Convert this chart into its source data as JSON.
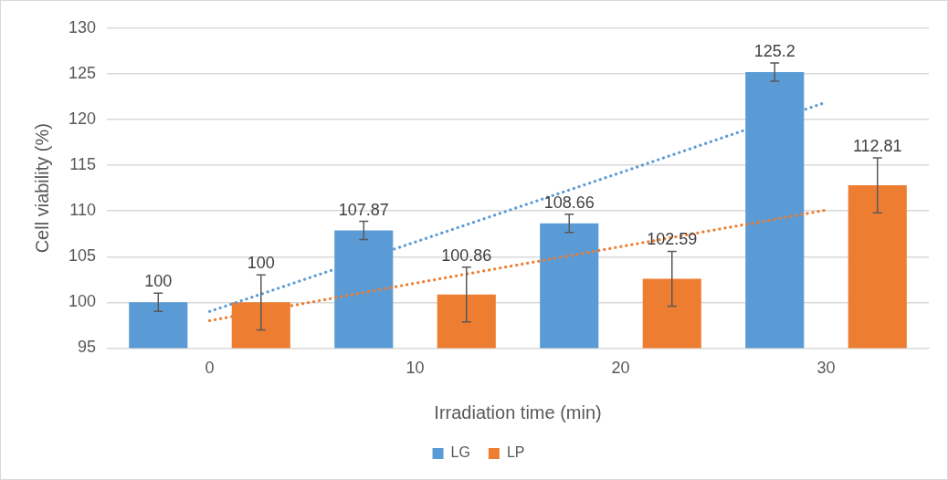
{
  "chart_data": {
    "type": "bar",
    "xlabel": "Irradiation time (min)",
    "ylabel": "Cell viability (%)",
    "categories": [
      "0",
      "10",
      "20",
      "30"
    ],
    "ylim": [
      95,
      130
    ],
    "yticks": [
      95,
      100,
      105,
      110,
      115,
      120,
      125,
      130
    ],
    "grid": "y",
    "legend": "bottom",
    "series": [
      {
        "name": "LG",
        "color": "#5b9bd5",
        "values": [
          100,
          107.87,
          108.66,
          125.2
        ],
        "value_labels": [
          "100",
          "107.87",
          "108.66",
          "125.2"
        ],
        "errors": [
          1,
          1,
          1,
          1
        ]
      },
      {
        "name": "LP",
        "color": "#ed7d31",
        "values": [
          100,
          100.86,
          102.59,
          112.81
        ],
        "value_labels": [
          "100",
          "100.86",
          "102.59",
          "112.81"
        ],
        "errors": [
          3,
          3,
          3,
          3
        ]
      },
      {
        "type": "line",
        "color": "#5b9bd5",
        "line_style": "dotted",
        "marker": "none",
        "values": [
          99.0,
          106.6,
          114.2,
          121.9
        ]
      },
      {
        "type": "line",
        "color": "#ed7d31",
        "line_style": "dotted",
        "marker": "none",
        "values": [
          98.0,
          102.1,
          106.1,
          110.1
        ]
      }
    ]
  }
}
